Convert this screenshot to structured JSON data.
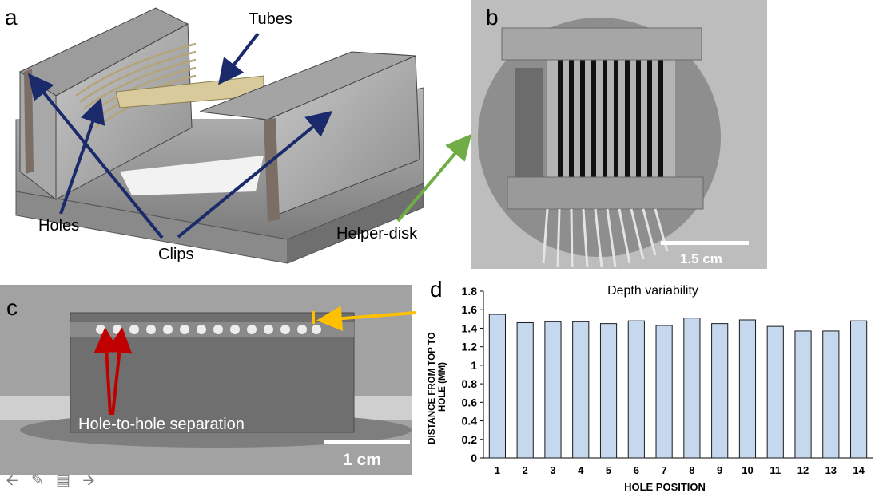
{
  "panels": {
    "a": {
      "letter": "a",
      "labels": {
        "tubes": "Tubes",
        "holes": "Holes",
        "clips": "Clips"
      }
    },
    "b": {
      "letter": "b",
      "labels": {
        "helper_disk": "Helper-disk"
      },
      "scale_bar": "1.5 cm"
    },
    "c": {
      "letter": "c",
      "labels": {
        "separation": "Hole-to-hole separation"
      },
      "scale_bar": "1 cm"
    },
    "d": {
      "letter": "d"
    }
  },
  "chart_data": {
    "type": "bar",
    "title": "Depth variability",
    "xlabel": "HOLE POSITION",
    "ylabel": "DISTANCE FROM TOP TO HOLE (MM)",
    "ylim": [
      0,
      1.8
    ],
    "yticks": [
      "0",
      "0.2",
      "0.4",
      "0.6",
      "0.8",
      "1",
      "1.2",
      "1.4",
      "1.6",
      "1.8"
    ],
    "categories": [
      "1",
      "2",
      "3",
      "4",
      "5",
      "6",
      "7",
      "8",
      "9",
      "10",
      "11",
      "12",
      "13",
      "14"
    ],
    "values": [
      1.55,
      1.46,
      1.47,
      1.47,
      1.45,
      1.48,
      1.43,
      1.51,
      1.45,
      1.49,
      1.42,
      1.37,
      1.37,
      1.48
    ],
    "grid": false,
    "legend": "none",
    "bar_color": "#c5d8ee",
    "bar_stroke": "#1a1a1a"
  },
  "colors": {
    "arrow_navy": "#1b2a6b",
    "arrow_green": "#70ad47",
    "arrow_orange": "#ffc000",
    "arrow_red": "#c00000"
  },
  "toolbar": {
    "icons": [
      "arrow-left-icon",
      "pencil-icon",
      "notes-icon",
      "arrow-right-icon"
    ]
  }
}
